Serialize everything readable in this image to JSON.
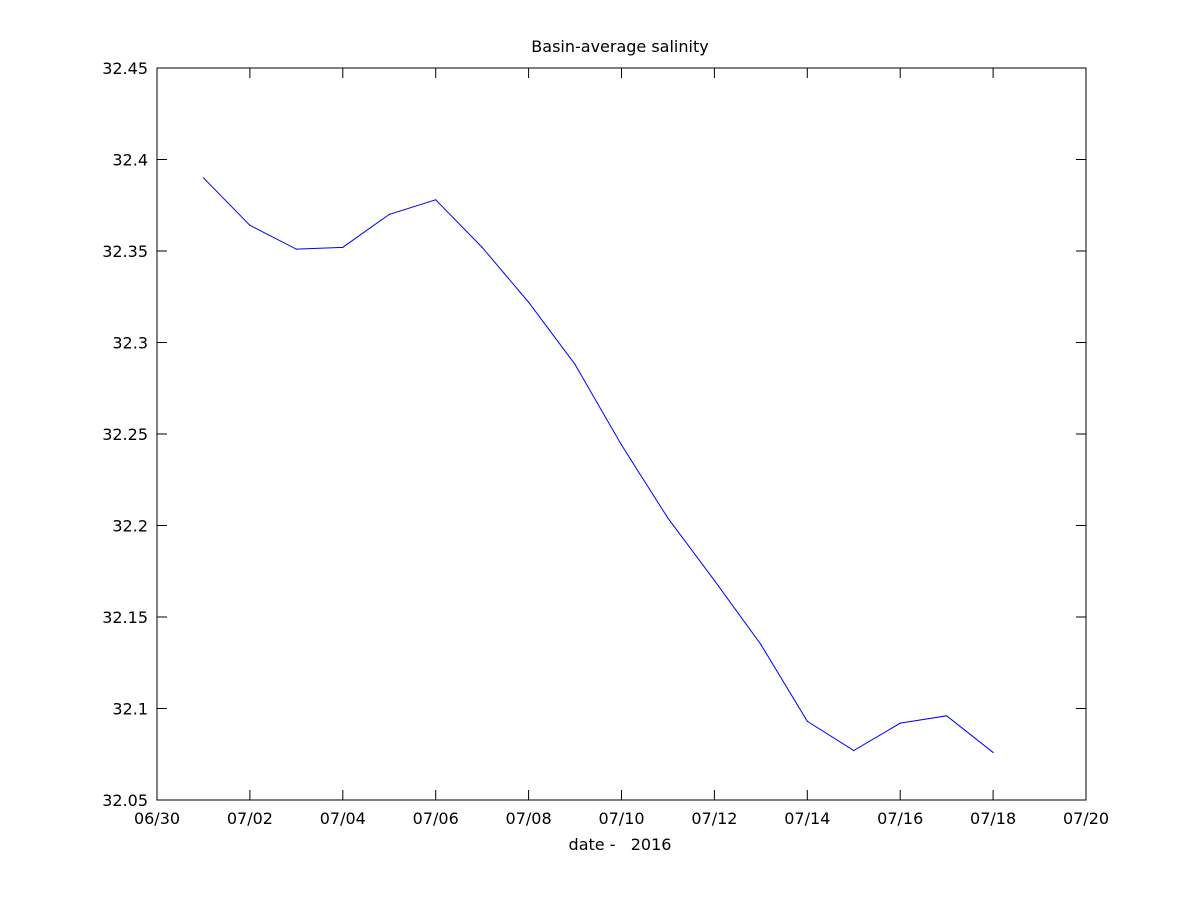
{
  "chart_data": {
    "type": "line",
    "title": "Basin-average salinity",
    "xlabel": "date -   2016",
    "ylabel": "",
    "grid": false,
    "legend": "none",
    "xlim": [
      "2016-06-30",
      "2016-07-20"
    ],
    "ylim": [
      32.05,
      32.45
    ],
    "xticks": [
      "2016-06-30",
      "2016-07-02",
      "2016-07-04",
      "2016-07-06",
      "2016-07-08",
      "2016-07-10",
      "2016-07-12",
      "2016-07-14",
      "2016-07-16",
      "2016-07-18",
      "2016-07-20"
    ],
    "xtick_labels": [
      "06/30",
      "07/02",
      "07/04",
      "07/06",
      "07/08",
      "07/10",
      "07/12",
      "07/14",
      "07/16",
      "07/18",
      "07/20"
    ],
    "yticks": [
      32.05,
      32.1,
      32.15,
      32.2,
      32.25,
      32.3,
      32.35,
      32.4,
      32.45
    ],
    "ytick_labels": [
      "32.05",
      "32.1",
      "32.15",
      "32.2",
      "32.25",
      "32.3",
      "32.35",
      "32.4",
      "32.45"
    ],
    "series": [
      {
        "color": "#0000ff",
        "x": [
          "2016-07-01",
          "2016-07-02",
          "2016-07-03",
          "2016-07-04",
          "2016-07-05",
          "2016-07-06",
          "2016-07-07",
          "2016-07-08",
          "2016-07-09",
          "2016-07-10",
          "2016-07-11",
          "2016-07-12",
          "2016-07-13",
          "2016-07-14",
          "2016-07-15",
          "2016-07-16",
          "2016-07-17",
          "2016-07-18"
        ],
        "y": [
          32.39,
          32.364,
          32.351,
          32.352,
          32.37,
          32.378,
          32.352,
          32.322,
          32.288,
          32.244,
          32.204,
          32.17,
          32.135,
          32.093,
          32.077,
          32.092,
          32.096,
          32.076
        ]
      }
    ]
  }
}
